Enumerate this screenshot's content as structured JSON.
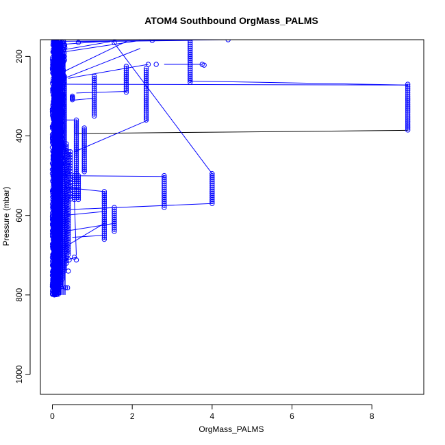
{
  "chart_data": {
    "type": "scatter",
    "title": "ATOM4 Southbound OrgMass_PALMS",
    "xlabel": "OrgMass_PALMS",
    "ylabel": "Pressure (mbar)",
    "xlim": [
      -0.3,
      9.3
    ],
    "ylim": [
      1050,
      158
    ],
    "y_reversed": true,
    "x_ticks": [
      0,
      2,
      4,
      6,
      8
    ],
    "y_ticks": [
      200,
      400,
      600,
      800,
      1000
    ],
    "marker": "open-circle",
    "connect_points": true,
    "series_color": "#0000ff",
    "accent_line_color": "#000000",
    "dense_band": {
      "x_max": 0.32,
      "p_top": 160,
      "p_bottom": 800
    },
    "profiles": [
      {
        "x": 0.05,
        "p": [
          160,
          800
        ],
        "step": 2
      },
      {
        "x": 0.1,
        "p": [
          160,
          800
        ],
        "step": 3
      },
      {
        "x": 0.15,
        "p": [
          180,
          800
        ],
        "step": 3
      },
      {
        "x": 0.2,
        "p": [
          170,
          780
        ],
        "step": 4
      },
      {
        "x": 0.25,
        "p": [
          200,
          760
        ],
        "step": 5
      },
      {
        "x": 0.3,
        "p": [
          250,
          740
        ],
        "step": 5
      },
      {
        "x": 0.35,
        "p": [
          420,
          720
        ],
        "step": 6
      },
      {
        "x": 0.4,
        "p": [
          440,
          700
        ],
        "step": 6
      },
      {
        "x": 0.45,
        "p": [
          440,
          560
        ],
        "step": 7
      },
      {
        "x": 0.5,
        "p": [
          300,
          310
        ],
        "step": 3
      },
      {
        "x": 0.55,
        "p": [
          500,
          560
        ],
        "step": 5
      },
      {
        "x": 0.6,
        "p": [
          360,
          520
        ],
        "step": 5
      },
      {
        "x": 0.65,
        "p": [
          500,
          560
        ],
        "step": 5
      },
      {
        "x": 0.8,
        "p": [
          380,
          490
        ],
        "step": 5
      },
      {
        "x": 1.05,
        "p": [
          250,
          350
        ],
        "step": 5
      },
      {
        "x": 1.3,
        "p": [
          540,
          660
        ],
        "step": 5
      },
      {
        "x": 1.55,
        "p": [
          580,
          640
        ],
        "step": 5
      },
      {
        "x": 1.85,
        "p": [
          225,
          290
        ],
        "step": 5
      },
      {
        "x": 2.35,
        "p": [
          230,
          360
        ],
        "step": 5
      },
      {
        "x": 2.8,
        "p": [
          500,
          580
        ],
        "step": 5
      },
      {
        "x": 3.45,
        "p": [
          160,
          265
        ],
        "step": 5
      },
      {
        "x": 4.0,
        "p": [
          495,
          570
        ],
        "step": 5
      },
      {
        "x": 8.9,
        "p": [
          270,
          385
        ],
        "step": 5
      }
    ],
    "points": [
      {
        "x": 0.18,
        "p": 745
      },
      {
        "x": 0.3,
        "p": 710
      },
      {
        "x": 0.42,
        "p": 712
      },
      {
        "x": 0.55,
        "p": 705
      },
      {
        "x": 0.6,
        "p": 712
      },
      {
        "x": 0.4,
        "p": 740
      },
      {
        "x": 0.33,
        "p": 782
      },
      {
        "x": 0.38,
        "p": 782
      },
      {
        "x": 1.3,
        "p": 590
      },
      {
        "x": 3.75,
        "p": 220
      },
      {
        "x": 3.8,
        "p": 222
      },
      {
        "x": 2.5,
        "p": 160
      },
      {
        "x": 4.4,
        "p": 158
      },
      {
        "x": 2.4,
        "p": 220
      },
      {
        "x": 2.6,
        "p": 220
      },
      {
        "x": 0.5,
        "p": 305
      },
      {
        "x": 0.65,
        "p": 165
      },
      {
        "x": 1.55,
        "p": 165
      },
      {
        "x": 0.2,
        "p": 168
      }
    ],
    "connector_lines": [
      {
        "from": [
          0.35,
          270
        ],
        "to": [
          8.9,
          272
        ]
      },
      {
        "from": [
          0.55,
          394
        ],
        "to": [
          8.9,
          386
        ],
        "color": "#000000"
      },
      {
        "from": [
          0.3,
          500
        ],
        "to": [
          2.8,
          502
        ]
      },
      {
        "from": [
          0.45,
          585
        ],
        "to": [
          4.0,
          570
        ]
      },
      {
        "from": [
          0.3,
          600
        ],
        "to": [
          1.3,
          590
        ]
      },
      {
        "from": [
          0.55,
          440
        ],
        "to": [
          2.4,
          360
        ]
      },
      {
        "from": [
          1.5,
          160
        ],
        "to": [
          4.0,
          495
        ]
      },
      {
        "from": [
          0.2,
          190
        ],
        "to": [
          2.2,
          160
        ]
      },
      {
        "from": [
          0.25,
          240
        ],
        "to": [
          1.9,
          160
        ]
      },
      {
        "from": [
          0.3,
          255
        ],
        "to": [
          2.2,
          180
        ]
      },
      {
        "from": [
          0.2,
          170
        ],
        "to": [
          1.6,
          160
        ]
      },
      {
        "from": [
          0.3,
          183
        ],
        "to": [
          1.45,
          163
        ]
      },
      {
        "from": [
          0.4,
          255
        ],
        "to": [
          2.4,
          220
        ]
      },
      {
        "from": [
          2.8,
          220
        ],
        "to": [
          3.75,
          220
        ]
      },
      {
        "from": [
          0.6,
          292
        ],
        "to": [
          1.85,
          288
        ]
      },
      {
        "from": [
          0.55,
          310
        ],
        "to": [
          1.05,
          305
        ]
      },
      {
        "from": [
          0.35,
          530
        ],
        "to": [
          1.3,
          540
        ]
      },
      {
        "from": [
          0.3,
          680
        ],
        "to": [
          1.3,
          620
        ]
      },
      {
        "from": [
          0.5,
          655
        ],
        "to": [
          1.3,
          650
        ]
      },
      {
        "from": [
          0.25,
          715
        ],
        "to": [
          0.6,
          705
        ]
      },
      {
        "from": [
          0.15,
          725
        ],
        "to": [
          0.2,
          740
        ]
      },
      {
        "from": [
          0.2,
          785
        ],
        "to": [
          0.38,
          782
        ]
      },
      {
        "from": [
          0.2,
          162
        ],
        "to": [
          4.4,
          158
        ]
      },
      {
        "from": [
          0.6,
          163
        ],
        "to": [
          3.4,
          160
        ]
      },
      {
        "from": [
          3.45,
          262
        ],
        "to": [
          8.9,
          272
        ]
      },
      {
        "from": [
          0.3,
          640
        ],
        "to": [
          1.55,
          620
        ]
      },
      {
        "from": [
          0.6,
          700
        ],
        "to": [
          0.55,
          560
        ]
      },
      {
        "from": [
          0.25,
          360
        ],
        "to": [
          0.6,
          360
        ]
      }
    ]
  }
}
